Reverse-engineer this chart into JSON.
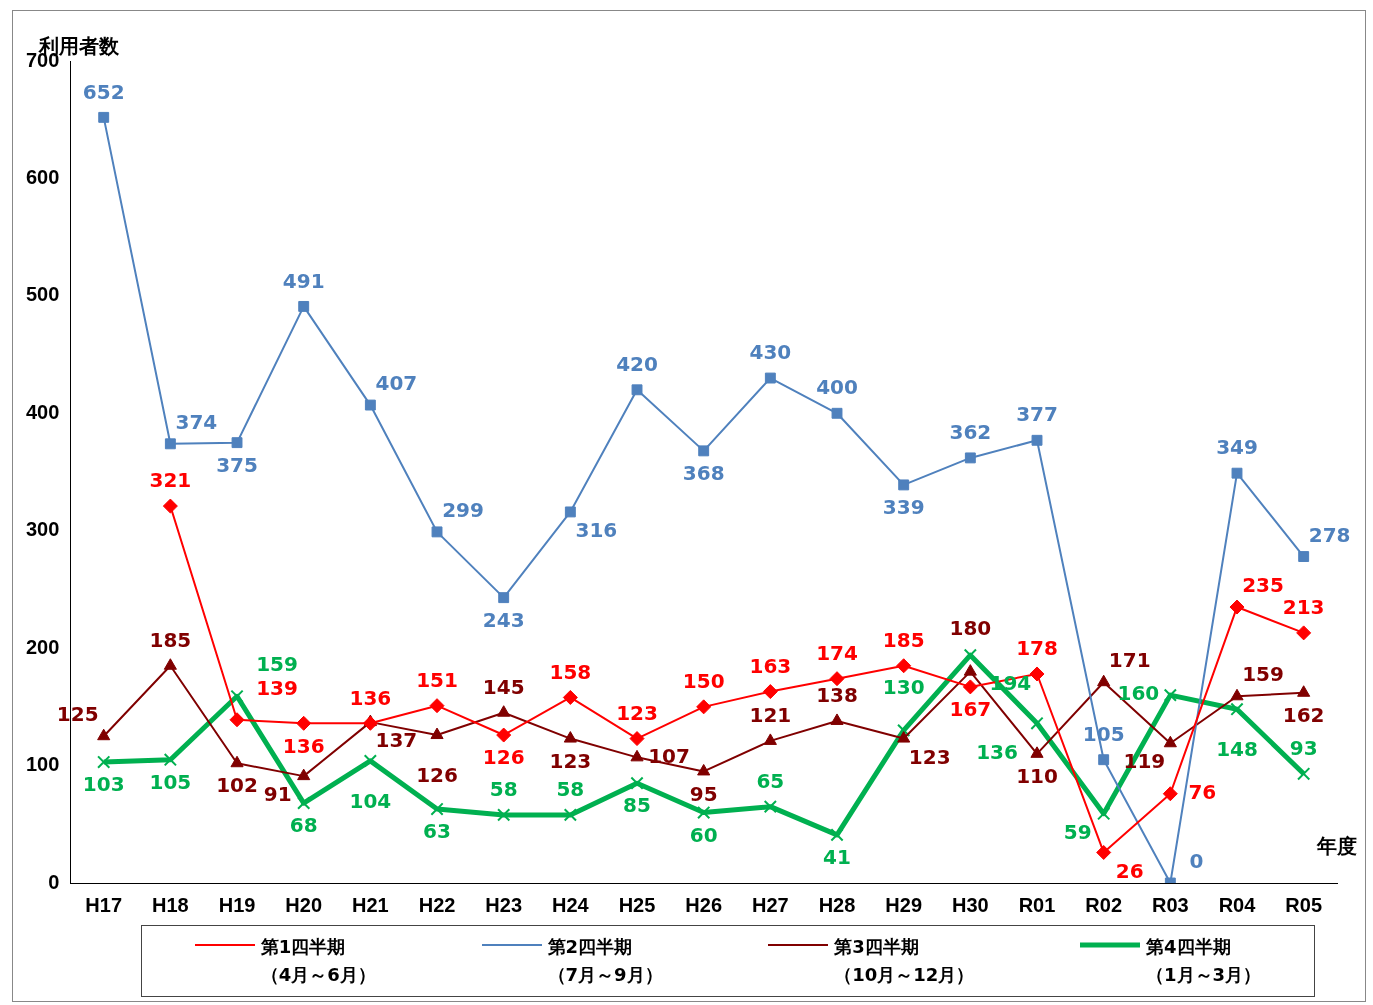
{
  "chart_data": {
    "type": "line",
    "ylabel": "利用者数",
    "xlabel": "年度",
    "categories": [
      "H17",
      "H18",
      "H19",
      "H20",
      "H21",
      "H22",
      "H23",
      "H24",
      "H25",
      "H26",
      "H27",
      "H28",
      "H29",
      "H30",
      "R01",
      "R02",
      "R03",
      "R04",
      "R05"
    ],
    "ylim": [
      0,
      700
    ],
    "yticks": [
      0,
      100,
      200,
      300,
      400,
      500,
      600,
      700
    ],
    "grid": false,
    "legend": "bottom",
    "data_labels": true,
    "line_style": "solid",
    "series": [
      {
        "name": "第1四半期（4月～6月）",
        "color": "#ff0000",
        "marker": "diamond",
        "values": [
          null,
          321,
          139,
          136,
          136,
          151,
          126,
          158,
          123,
          150,
          163,
          174,
          185,
          167,
          178,
          26,
          76,
          235,
          213
        ]
      },
      {
        "name": "第2四半期（7月～9月）",
        "color": "#4f81bd",
        "marker": "square",
        "values": [
          652,
          374,
          375,
          491,
          407,
          299,
          243,
          316,
          420,
          368,
          430,
          400,
          339,
          362,
          377,
          105,
          0,
          349,
          278
        ]
      },
      {
        "name": "第3四半期（10月～12月）",
        "color": "#800000",
        "marker": "triangle",
        "values": [
          125,
          185,
          102,
          91,
          137,
          126,
          145,
          123,
          107,
          95,
          121,
          138,
          123,
          180,
          110,
          171,
          119,
          159,
          162
        ]
      },
      {
        "name": "第4四半期（1月～3月）",
        "color": "#00b050",
        "marker": "cross",
        "values": [
          103,
          105,
          159,
          68,
          104,
          63,
          58,
          58,
          85,
          60,
          65,
          41,
          130,
          194,
          136,
          59,
          160,
          148,
          93
        ]
      }
    ]
  }
}
